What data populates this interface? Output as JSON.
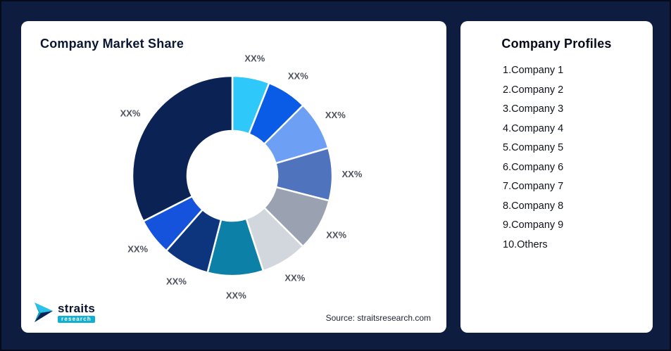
{
  "market_share_card": {
    "title": "Company Market Share",
    "source": "Source: straitsresearch.com",
    "logo": {
      "brand": "straits",
      "sub": "research"
    }
  },
  "profiles_card": {
    "title": "Company Profiles",
    "items": [
      "1.Company 1",
      "2.Company 2",
      "3.Company 3",
      "4.Company 4",
      "5.Company 5",
      "6.Company 6",
      "7.Company 7",
      "8.Company 8",
      "9.Company 9",
      "10.Others"
    ]
  },
  "chart_data": {
    "type": "pie",
    "donut": true,
    "title": "Company Market Share",
    "categories": [
      "Company 1",
      "Company 2",
      "Company 3",
      "Company 4",
      "Company 5",
      "Company 6",
      "Company 7",
      "Company 8",
      "Company 9",
      "Others"
    ],
    "labels": [
      "XX%",
      "XX%",
      "XX%",
      "XX%",
      "XX%",
      "XX%",
      "XX%",
      "XX%",
      "XX%",
      "XX%"
    ],
    "values_estimated_pct": [
      6,
      6.5,
      8,
      8.5,
      8.5,
      7.5,
      9,
      7.5,
      6,
      32.5
    ],
    "colors": [
      "#2fc8fb",
      "#0a5ce6",
      "#6d9ff4",
      "#4f74bd",
      "#9aa2b2",
      "#d2d6dd",
      "#0c80a6",
      "#0d357e",
      "#1653dd",
      "#0a2254"
    ],
    "start_angle_deg": 0,
    "clockwise": true,
    "segment_stroke": "#ffffff",
    "label_color": "#4d525e",
    "legend_position": "none"
  }
}
